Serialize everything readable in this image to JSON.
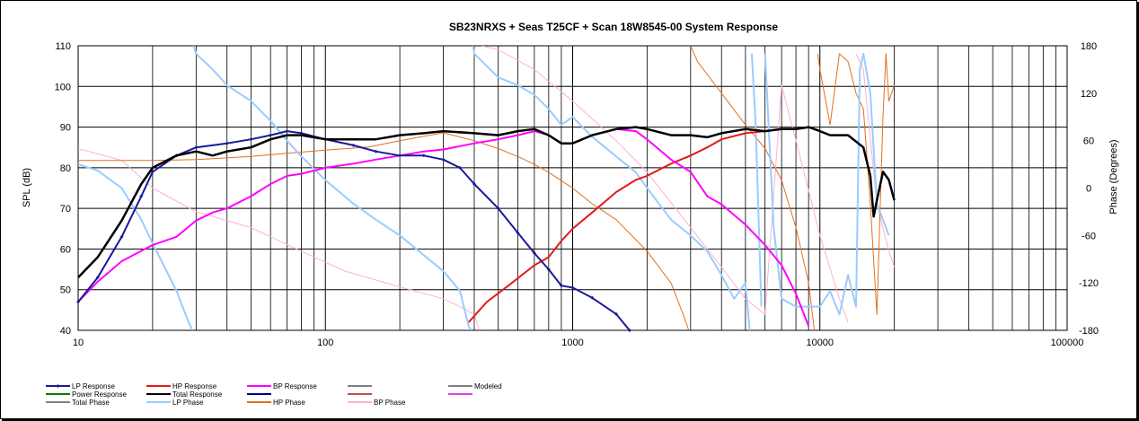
{
  "chart_data": {
    "type": "line",
    "title": "SB23NRXS + Seas T25CF + Scan 18W8545-00   System Response",
    "xscale": "log",
    "xlim": [
      10,
      100000
    ],
    "ylim": [
      40,
      110
    ],
    "y2lim": [
      -180,
      180
    ],
    "ylabel": "SPL (dB)",
    "y2label": "Phase (Degrees)",
    "grid": true,
    "x_ticks": [
      "10",
      "100",
      "1000",
      "10000",
      "100000"
    ],
    "y_ticks": [
      "110",
      "100",
      "90",
      "80",
      "70",
      "60",
      "50",
      "40"
    ],
    "y2_ticks": [
      "180",
      "120",
      "60",
      "0",
      "-60",
      "-120",
      "-180"
    ],
    "legend_position": "bottom",
    "legend": [
      {
        "name": "LP Response",
        "color": "#1a1a99",
        "marker": true
      },
      {
        "name": "HP Response",
        "color": "#e31a1a"
      },
      {
        "name": "BP Response",
        "color": "#ff00ff"
      },
      {
        "name": "",
        "color": "#808080"
      },
      {
        "name": "Modeled",
        "color": "#808080"
      },
      {
        "name": "Power Response",
        "color": "#008000"
      },
      {
        "name": "Total Response",
        "color": "#000000"
      },
      {
        "name": "",
        "color": "#000080"
      },
      {
        "name": "",
        "color": "#c0504d"
      },
      {
        "name": "",
        "color": "#e040e0"
      },
      {
        "name": "Total Phase",
        "color": "#808080"
      },
      {
        "name": "LP Phase",
        "color": "#99ccff"
      },
      {
        "name": "HP Phase",
        "color": "#e07020"
      },
      {
        "name": "BP Phase",
        "color": "#ffb0d0"
      }
    ],
    "series": [
      {
        "name": "Total Response",
        "axis": "spl",
        "color": "#000000",
        "width": 2.5,
        "points": [
          [
            10,
            53
          ],
          [
            12,
            58
          ],
          [
            15,
            67
          ],
          [
            18,
            76
          ],
          [
            20,
            80
          ],
          [
            25,
            83
          ],
          [
            30,
            84
          ],
          [
            35,
            83
          ],
          [
            40,
            84
          ],
          [
            50,
            85
          ],
          [
            60,
            87
          ],
          [
            70,
            88
          ],
          [
            80,
            88
          ],
          [
            100,
            87
          ],
          [
            130,
            87
          ],
          [
            160,
            87
          ],
          [
            200,
            88
          ],
          [
            250,
            88.5
          ],
          [
            300,
            89
          ],
          [
            400,
            88.5
          ],
          [
            500,
            88
          ],
          [
            600,
            89
          ],
          [
            700,
            89.5
          ],
          [
            800,
            88
          ],
          [
            900,
            86
          ],
          [
            1000,
            86
          ],
          [
            1200,
            88
          ],
          [
            1500,
            89.5
          ],
          [
            1800,
            90
          ],
          [
            2000,
            89.5
          ],
          [
            2500,
            88
          ],
          [
            3000,
            88
          ],
          [
            3500,
            87.5
          ],
          [
            4000,
            88.5
          ],
          [
            5000,
            89.5
          ],
          [
            6000,
            89
          ],
          [
            7000,
            89.5
          ],
          [
            8000,
            89.5
          ],
          [
            9000,
            90
          ],
          [
            10000,
            89
          ],
          [
            11000,
            88
          ],
          [
            13000,
            88
          ],
          [
            15000,
            85
          ],
          [
            16000,
            78
          ],
          [
            16500,
            68
          ],
          [
            17000,
            72
          ],
          [
            18000,
            79
          ],
          [
            19000,
            77
          ],
          [
            20000,
            72
          ]
        ]
      },
      {
        "name": "LP Response",
        "axis": "spl",
        "color": "#1a1a99",
        "width": 2,
        "markers": true,
        "points": [
          [
            10,
            47
          ],
          [
            12,
            53
          ],
          [
            15,
            63
          ],
          [
            18,
            73
          ],
          [
            20,
            79
          ],
          [
            25,
            83
          ],
          [
            30,
            85
          ],
          [
            40,
            86
          ],
          [
            50,
            87
          ],
          [
            60,
            88
          ],
          [
            70,
            89
          ],
          [
            80,
            88.5
          ],
          [
            100,
            87
          ],
          [
            130,
            85.5
          ],
          [
            160,
            84
          ],
          [
            200,
            83
          ],
          [
            250,
            83
          ],
          [
            300,
            82
          ],
          [
            350,
            80
          ],
          [
            400,
            76
          ],
          [
            500,
            70
          ],
          [
            600,
            64
          ],
          [
            700,
            59
          ],
          [
            800,
            55
          ],
          [
            900,
            51
          ],
          [
            1000,
            50.5
          ],
          [
            1200,
            48
          ],
          [
            1500,
            44
          ],
          [
            1700,
            40
          ]
        ]
      },
      {
        "name": "HP Response",
        "axis": "spl",
        "color": "#e31a1a",
        "width": 2,
        "points": [
          [
            380,
            42
          ],
          [
            450,
            47
          ],
          [
            550,
            51
          ],
          [
            700,
            56
          ],
          [
            800,
            58
          ],
          [
            900,
            62
          ],
          [
            1000,
            65
          ],
          [
            1200,
            69
          ],
          [
            1500,
            74
          ],
          [
            1800,
            77
          ],
          [
            2000,
            78
          ],
          [
            2500,
            81
          ],
          [
            3000,
            83
          ],
          [
            3500,
            85
          ],
          [
            4000,
            87
          ],
          [
            5000,
            88.5
          ],
          [
            6000,
            89
          ]
        ]
      },
      {
        "name": "BP Response",
        "axis": "spl",
        "color": "#ff00ff",
        "width": 2,
        "points": [
          [
            10,
            47
          ],
          [
            12,
            52
          ],
          [
            15,
            57
          ],
          [
            20,
            61
          ],
          [
            25,
            63
          ],
          [
            30,
            67
          ],
          [
            35,
            69
          ],
          [
            40,
            70
          ],
          [
            50,
            73
          ],
          [
            60,
            76
          ],
          [
            70,
            78
          ],
          [
            80,
            78.5
          ],
          [
            100,
            80
          ],
          [
            130,
            81
          ],
          [
            160,
            82
          ],
          [
            200,
            83
          ],
          [
            250,
            84
          ],
          [
            300,
            84.5
          ],
          [
            400,
            86
          ],
          [
            500,
            87
          ],
          [
            600,
            88
          ],
          [
            700,
            89
          ],
          [
            800,
            88
          ],
          [
            900,
            86
          ],
          [
            1000,
            86
          ],
          [
            1200,
            88
          ],
          [
            1500,
            89.5
          ],
          [
            1800,
            89
          ],
          [
            2000,
            87
          ],
          [
            2500,
            82
          ],
          [
            3000,
            79
          ],
          [
            3500,
            73
          ],
          [
            4000,
            71
          ],
          [
            5000,
            66
          ],
          [
            6000,
            61
          ],
          [
            7000,
            56
          ],
          [
            8000,
            49
          ],
          [
            9000,
            41
          ]
        ]
      },
      {
        "name": "LP Phase",
        "axis": "phase",
        "color": "#99ccff",
        "width": 2,
        "points": [
          [
            10,
            30
          ],
          [
            12,
            22
          ],
          [
            15,
            0
          ],
          [
            18,
            -40
          ],
          [
            20,
            -70
          ],
          [
            25,
            -130
          ],
          [
            28,
            -170
          ],
          [
            29,
            -180
          ],
          [
            29.3,
            180
          ],
          [
            30,
            170
          ],
          [
            35,
            150
          ],
          [
            40,
            130
          ],
          [
            50,
            110
          ],
          [
            60,
            85
          ],
          [
            70,
            60
          ],
          [
            80,
            40
          ],
          [
            100,
            10
          ],
          [
            130,
            -20
          ],
          [
            160,
            -40
          ],
          [
            200,
            -60
          ],
          [
            250,
            -85
          ],
          [
            300,
            -105
          ],
          [
            350,
            -130
          ],
          [
            380,
            -175
          ],
          [
            390,
            -180
          ],
          [
            395,
            180
          ],
          [
            400,
            170
          ],
          [
            500,
            140
          ],
          [
            600,
            130
          ],
          [
            700,
            118
          ],
          [
            800,
            100
          ],
          [
            900,
            80
          ],
          [
            1000,
            90
          ],
          [
            1200,
            65
          ],
          [
            1500,
            40
          ],
          [
            1800,
            20
          ],
          [
            2000,
            0
          ],
          [
            2500,
            -40
          ],
          [
            3000,
            -60
          ],
          [
            3500,
            -80
          ],
          [
            4000,
            -110
          ],
          [
            4500,
            -140
          ],
          [
            5000,
            -120
          ],
          [
            5200,
            -180
          ],
          [
            5300,
            170
          ],
          [
            5500,
            80
          ],
          [
            5800,
            -150
          ],
          [
            6000,
            170
          ],
          [
            6500,
            -50
          ],
          [
            7000,
            -140
          ],
          [
            8000,
            -150
          ],
          [
            9000,
            -150
          ],
          [
            10000,
            -150
          ],
          [
            11000,
            -130
          ],
          [
            12000,
            -160
          ],
          [
            13000,
            -110
          ],
          [
            14000,
            -150
          ],
          [
            14500,
            150
          ],
          [
            15000,
            170
          ],
          [
            16000,
            120
          ],
          [
            17000,
            -20
          ],
          [
            18000,
            -40
          ],
          [
            19000,
            -60
          ]
        ]
      },
      {
        "name": "HP Phase",
        "axis": "phase",
        "color": "#e07020",
        "width": 1,
        "points": [
          [
            10,
            35
          ],
          [
            20,
            35
          ],
          [
            30,
            36
          ],
          [
            50,
            40
          ],
          [
            70,
            44
          ],
          [
            100,
            48
          ],
          [
            150,
            52
          ],
          [
            200,
            60
          ],
          [
            300,
            70
          ],
          [
            400,
            60
          ],
          [
            500,
            50
          ],
          [
            600,
            40
          ],
          [
            700,
            30
          ],
          [
            800,
            20
          ],
          [
            1000,
            0
          ],
          [
            1200,
            -20
          ],
          [
            1500,
            -40
          ],
          [
            2000,
            -80
          ],
          [
            2500,
            -120
          ],
          [
            2800,
            -160
          ],
          [
            2950,
            -180
          ],
          [
            3000,
            180
          ],
          [
            3200,
            160
          ],
          [
            4000,
            120
          ],
          [
            5000,
            80
          ],
          [
            6000,
            50
          ],
          [
            7000,
            10
          ],
          [
            8000,
            -50
          ],
          [
            9000,
            -120
          ],
          [
            9500,
            -180
          ],
          [
            9800,
            170
          ],
          [
            10000,
            150
          ],
          [
            11000,
            80
          ],
          [
            12000,
            170
          ],
          [
            13000,
            160
          ],
          [
            14000,
            120
          ],
          [
            15000,
            100
          ],
          [
            16000,
            -20
          ],
          [
            17000,
            -160
          ],
          [
            18000,
            90
          ],
          [
            18500,
            170
          ],
          [
            19000,
            110
          ],
          [
            20000,
            130
          ]
        ]
      },
      {
        "name": "BP Phase",
        "axis": "phase",
        "color": "#ffb0d0",
        "width": 1,
        "points": [
          [
            10,
            50
          ],
          [
            15,
            35
          ],
          [
            20,
            0
          ],
          [
            30,
            -30
          ],
          [
            50,
            -50
          ],
          [
            80,
            -80
          ],
          [
            120,
            -105
          ],
          [
            200,
            -125
          ],
          [
            300,
            -140
          ],
          [
            350,
            -150
          ],
          [
            400,
            -160
          ],
          [
            420,
            -180
          ],
          [
            430,
            180
          ],
          [
            500,
            175
          ],
          [
            700,
            150
          ],
          [
            1000,
            110
          ],
          [
            1500,
            60
          ],
          [
            2000,
            20
          ],
          [
            3000,
            -50
          ],
          [
            4000,
            -100
          ],
          [
            5000,
            -140
          ],
          [
            6000,
            -160
          ],
          [
            7000,
            130
          ],
          [
            8000,
            60
          ],
          [
            10000,
            -60
          ],
          [
            12000,
            -140
          ],
          [
            13000,
            -170
          ],
          [
            14000,
            170
          ],
          [
            15000,
            150
          ],
          [
            17000,
            -20
          ],
          [
            19000,
            -80
          ],
          [
            20000,
            -100
          ]
        ]
      }
    ]
  }
}
